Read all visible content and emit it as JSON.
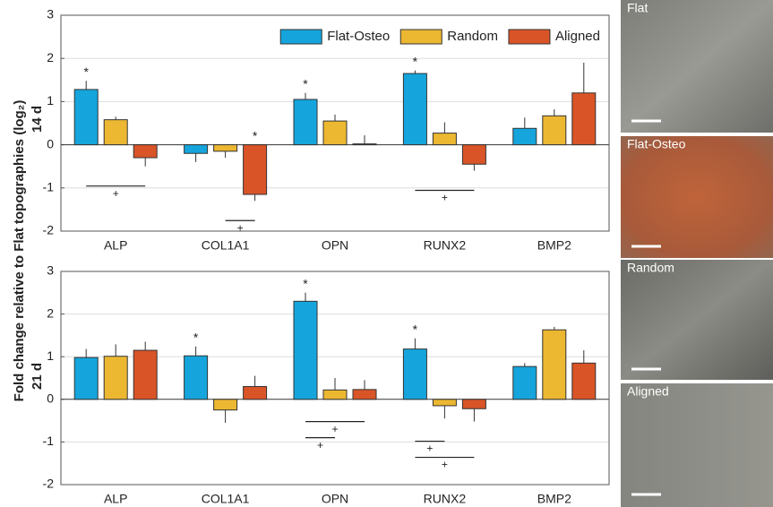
{
  "chart_data": [
    {
      "type": "bar",
      "subtitle": "14 d",
      "categories": [
        "ALP",
        "COL1A1",
        "OPN",
        "RUNX2",
        "BMP2"
      ],
      "series": [
        {
          "name": "Flat-Osteo",
          "color": "#15a5dc",
          "values": [
            1.28,
            -0.2,
            1.05,
            1.65,
            0.38
          ],
          "errors": [
            0.2,
            0.2,
            0.15,
            0.07,
            0.25
          ]
        },
        {
          "name": "Random",
          "color": "#ecb731",
          "values": [
            0.58,
            -0.15,
            0.55,
            0.27,
            0.67
          ],
          "errors": [
            0.07,
            0.15,
            0.15,
            0.25,
            0.15
          ]
        },
        {
          "name": "Aligned",
          "color": "#d95427",
          "values": [
            -0.3,
            -1.15,
            0.02,
            -0.45,
            1.2
          ],
          "errors": [
            0.2,
            0.15,
            0.2,
            0.15,
            0.7
          ]
        }
      ],
      "ylim": [
        -2,
        3
      ],
      "yticks": [
        -2,
        -1,
        0,
        1,
        2,
        3
      ],
      "grid": true,
      "legend": "upper right",
      "stars": [
        {
          "text": "*",
          "category": "ALP",
          "series": "Flat-Osteo"
        },
        {
          "text": "*",
          "category": "COL1A1",
          "series": "Aligned"
        },
        {
          "text": "*",
          "category": "OPN",
          "series": "Flat-Osteo"
        },
        {
          "text": "*",
          "category": "RUNX2",
          "series": "Flat-Osteo"
        }
      ],
      "brackets": [
        {
          "text": "+",
          "category": "ALP",
          "from": "Flat-Osteo",
          "to": "Aligned"
        },
        {
          "text": "+",
          "category": "COL1A1",
          "from": "Random",
          "to": "Aligned"
        },
        {
          "text": "+",
          "category": "RUNX2",
          "from": "Flat-Osteo",
          "to": "Aligned"
        }
      ]
    },
    {
      "type": "bar",
      "subtitle": "21 d",
      "categories": [
        "ALP",
        "COL1A1",
        "OPN",
        "RUNX2",
        "BMP2"
      ],
      "series": [
        {
          "color": "#15a5dc",
          "values": [
            0.98,
            1.02,
            2.3,
            1.18,
            0.77
          ],
          "errors": [
            0.2,
            0.22,
            0.2,
            0.25,
            0.08
          ]
        },
        {
          "color": "#ecb731",
          "values": [
            1.01,
            -0.25,
            0.22,
            -0.15,
            1.63
          ],
          "errors": [
            0.28,
            0.3,
            0.28,
            0.3,
            0.07
          ]
        },
        {
          "color": "#d95427",
          "values": [
            1.15,
            0.3,
            0.23,
            -0.22,
            0.85
          ],
          "errors": [
            0.2,
            0.25,
            0.22,
            0.3,
            0.3
          ]
        }
      ],
      "ylim": [
        -2,
        3
      ],
      "yticks": [
        -2,
        -1,
        0,
        1,
        2,
        3
      ],
      "grid": true,
      "stars": [
        {
          "text": "*",
          "category": "COL1A1",
          "series": 0
        },
        {
          "text": "*",
          "category": "OPN",
          "series": 0
        },
        {
          "text": "*",
          "category": "RUNX2",
          "series": 0
        }
      ],
      "brackets": [
        {
          "text": "+",
          "category": "OPN",
          "from": 0,
          "to": 2
        },
        {
          "text": "+",
          "category": "OPN",
          "from": 0,
          "to": 1
        },
        {
          "text": "+",
          "category": "RUNX2",
          "from": 0,
          "to": 1
        },
        {
          "text": "+",
          "category": "RUNX2",
          "from": 0,
          "to": 2
        }
      ]
    }
  ],
  "ylabel": "Fold change relative to Flat topographies (log₂)",
  "images": [
    {
      "label": "Flat"
    },
    {
      "label": "Flat-Osteo"
    },
    {
      "label": "Random"
    },
    {
      "label": "Aligned"
    }
  ]
}
